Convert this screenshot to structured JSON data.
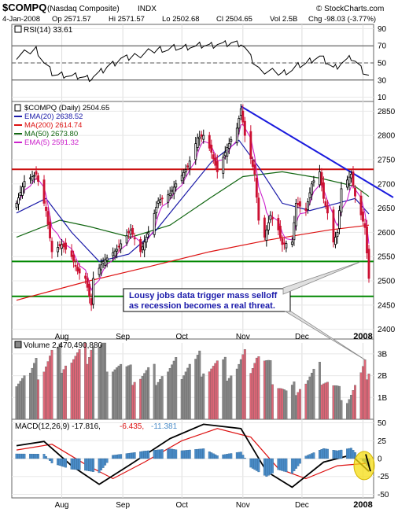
{
  "header": {
    "symbol": "$COMPQ",
    "name": "(Nasdaq Composite)",
    "exchange": "INDX",
    "brand": "© StockCharts.com",
    "stats": {
      "date": "4-Jan-2008",
      "op": "Op 2571.57",
      "hi": "Hi 2571.57",
      "lo": "Lo 2502.68",
      "cl": "Cl 2504.65",
      "vol": "Vol 2.5B",
      "chg": "Chg -98.03 (-3.77%)"
    }
  },
  "colors": {
    "ema20": "#1a1aa8",
    "ma200": "#dd1111",
    "ma50": "#116611",
    "ema5": "#cc22cc",
    "down_candle": "#cc1133",
    "up_candle": "#000000",
    "trendline": "#1b1bdd",
    "support": "#008800",
    "resistance": "#cc1111",
    "volume_down": "#dd6677",
    "volume_up": "#888888",
    "histogram": "#4a8cc8",
    "highlight": "#f5dc10"
  },
  "rsi": {
    "label": "RSI(14) 33.61",
    "ticks": [
      "90",
      "70",
      "50",
      "30",
      "10"
    ]
  },
  "price": {
    "legend": [
      {
        "label": "$COMPQ (Daily) 2504.65",
        "key": "price"
      },
      {
        "label": "EMA(20) 2638.52",
        "key": "ema20"
      },
      {
        "label": "MA(200) 2614.74",
        "key": "ma200"
      },
      {
        "label": "MA(50) 2673.80",
        "key": "ma50"
      },
      {
        "label": "EMA(5) 2591.32",
        "key": "ema5"
      }
    ],
    "ticks": [
      "2850",
      "2800",
      "2750",
      "2700",
      "2650",
      "2600",
      "2550",
      "2500",
      "2450",
      "2400"
    ],
    "annotation_line1": "Lousy jobs data trigger mass selloff",
    "annotation_line2": "as recession becomes a real threat."
  },
  "volume": {
    "label": "Volume 2,470,490,880",
    "ticks": [
      "3B",
      "2B",
      "1B"
    ]
  },
  "macd": {
    "label_main": "MACD(12,26,9) -17.816,",
    "label_signal": "-6.435,",
    "label_hist": "-11.381",
    "ticks": [
      "50",
      "25",
      "0",
      "-25",
      "-50"
    ]
  },
  "x_axis": {
    "months": [
      "Aug",
      "Sep",
      "Oct",
      "Nov",
      "Dec",
      "2008"
    ]
  },
  "chart_data": {
    "type": "line",
    "x_range": [
      "2007-07-09",
      "2008-01-04"
    ],
    "price_ylim": [
      2380,
      2870
    ],
    "rsi_ylim": [
      5,
      95
    ],
    "volume_ylim": [
      0,
      3500000000
    ],
    "macd_ylim": [
      -55,
      55
    ],
    "horizontal_levels": {
      "resistance": 2730,
      "support_upper": 2540,
      "support_lower": 2468
    },
    "trendline": [
      {
        "date": "2007-10-31",
        "value": 2860
      },
      {
        "date": "2008-01-04",
        "value": 2685
      }
    ],
    "price_series": [
      {
        "date": "2007-07-09",
        "close": 2660
      },
      {
        "date": "2007-07-13",
        "close": 2705
      },
      {
        "date": "2007-07-19",
        "close": 2720
      },
      {
        "date": "2007-07-24",
        "close": 2645
      },
      {
        "date": "2007-07-27",
        "close": 2560
      },
      {
        "date": "2007-08-01",
        "close": 2575
      },
      {
        "date": "2007-08-06",
        "close": 2550
      },
      {
        "date": "2007-08-09",
        "close": 2520
      },
      {
        "date": "2007-08-13",
        "close": 2505
      },
      {
        "date": "2007-08-16",
        "close": 2450
      },
      {
        "date": "2007-08-17",
        "close": 2505
      },
      {
        "date": "2007-08-22",
        "close": 2540
      },
      {
        "date": "2007-08-29",
        "close": 2565
      },
      {
        "date": "2007-09-05",
        "close": 2605
      },
      {
        "date": "2007-09-10",
        "close": 2560
      },
      {
        "date": "2007-09-14",
        "close": 2600
      },
      {
        "date": "2007-09-19",
        "close": 2665
      },
      {
        "date": "2007-09-25",
        "close": 2680
      },
      {
        "date": "2007-09-28",
        "close": 2700
      },
      {
        "date": "2007-10-04",
        "close": 2735
      },
      {
        "date": "2007-10-09",
        "close": 2795
      },
      {
        "date": "2007-10-12",
        "close": 2800
      },
      {
        "date": "2007-10-16",
        "close": 2765
      },
      {
        "date": "2007-10-19",
        "close": 2725
      },
      {
        "date": "2007-10-24",
        "close": 2775
      },
      {
        "date": "2007-10-29",
        "close": 2815
      },
      {
        "date": "2007-10-31",
        "close": 2855
      },
      {
        "date": "2007-11-02",
        "close": 2800
      },
      {
        "date": "2007-11-07",
        "close": 2720
      },
      {
        "date": "2007-11-09",
        "close": 2625
      },
      {
        "date": "2007-11-12",
        "close": 2590
      },
      {
        "date": "2007-11-15",
        "close": 2635
      },
      {
        "date": "2007-11-19",
        "close": 2605
      },
      {
        "date": "2007-11-21",
        "close": 2575
      },
      {
        "date": "2007-11-26",
        "close": 2580
      },
      {
        "date": "2007-11-28",
        "close": 2660
      },
      {
        "date": "2007-12-03",
        "close": 2645
      },
      {
        "date": "2007-12-06",
        "close": 2700
      },
      {
        "date": "2007-12-10",
        "close": 2725
      },
      {
        "date": "2007-12-12",
        "close": 2670
      },
      {
        "date": "2007-12-14",
        "close": 2640
      },
      {
        "date": "2007-12-17",
        "close": 2580
      },
      {
        "date": "2007-12-19",
        "close": 2600
      },
      {
        "date": "2007-12-21",
        "close": 2690
      },
      {
        "date": "2007-12-26",
        "close": 2720
      },
      {
        "date": "2007-12-28",
        "close": 2675
      },
      {
        "date": "2008-01-02",
        "close": 2610
      },
      {
        "date": "2008-01-04",
        "close": 2505
      }
    ],
    "ema20_series": [
      {
        "date": "2007-07-09",
        "value": 2640
      },
      {
        "date": "2007-07-24",
        "value": 2670
      },
      {
        "date": "2007-08-06",
        "value": 2600
      },
      {
        "date": "2007-08-20",
        "value": 2540
      },
      {
        "date": "2007-09-04",
        "value": 2555
      },
      {
        "date": "2007-09-18",
        "value": 2605
      },
      {
        "date": "2007-10-02",
        "value": 2675
      },
      {
        "date": "2007-10-16",
        "value": 2745
      },
      {
        "date": "2007-10-30",
        "value": 2790
      },
      {
        "date": "2007-11-09",
        "value": 2735
      },
      {
        "date": "2007-11-21",
        "value": 2660
      },
      {
        "date": "2007-12-05",
        "value": 2645
      },
      {
        "date": "2007-12-19",
        "value": 2660
      },
      {
        "date": "2007-12-28",
        "value": 2670
      },
      {
        "date": "2008-01-04",
        "value": 2638
      }
    ],
    "ma50_series": [
      {
        "date": "2007-07-09",
        "value": 2590
      },
      {
        "date": "2007-07-31",
        "value": 2625
      },
      {
        "date": "2007-08-15",
        "value": 2612
      },
      {
        "date": "2007-09-05",
        "value": 2590
      },
      {
        "date": "2007-09-25",
        "value": 2615
      },
      {
        "date": "2007-10-15",
        "value": 2670
      },
      {
        "date": "2007-11-01",
        "value": 2715
      },
      {
        "date": "2007-11-21",
        "value": 2725
      },
      {
        "date": "2007-12-10",
        "value": 2712
      },
      {
        "date": "2007-12-28",
        "value": 2695
      },
      {
        "date": "2008-01-04",
        "value": 2674
      }
    ],
    "ma200_series": [
      {
        "date": "2007-07-09",
        "value": 2460
      },
      {
        "date": "2007-08-15",
        "value": 2500
      },
      {
        "date": "2007-09-15",
        "value": 2530
      },
      {
        "date": "2007-10-15",
        "value": 2560
      },
      {
        "date": "2007-11-15",
        "value": 2585
      },
      {
        "date": "2007-12-15",
        "value": 2605
      },
      {
        "date": "2008-01-04",
        "value": 2615
      }
    ],
    "rsi_series": [
      {
        "date": "2007-07-09",
        "value": 58
      },
      {
        "date": "2007-07-19",
        "value": 66
      },
      {
        "date": "2007-07-27",
        "value": 38
      },
      {
        "date": "2007-08-16",
        "value": 32
      },
      {
        "date": "2007-08-29",
        "value": 52
      },
      {
        "date": "2007-09-19",
        "value": 66
      },
      {
        "date": "2007-10-09",
        "value": 70
      },
      {
        "date": "2007-10-31",
        "value": 73
      },
      {
        "date": "2007-11-09",
        "value": 42
      },
      {
        "date": "2007-11-21",
        "value": 38
      },
      {
        "date": "2007-12-10",
        "value": 58
      },
      {
        "date": "2007-12-17",
        "value": 44
      },
      {
        "date": "2007-12-26",
        "value": 56
      },
      {
        "date": "2008-01-04",
        "value": 33.61
      }
    ],
    "volume_series": [
      {
        "date": "2007-07-16",
        "value": 2000000000
      },
      {
        "date": "2007-07-27",
        "value": 2900000000
      },
      {
        "date": "2007-08-10",
        "value": 2700000000
      },
      {
        "date": "2007-08-16",
        "value": 3500000000
      },
      {
        "date": "2007-09-05",
        "value": 2000000000
      },
      {
        "date": "2007-09-21",
        "value": 2100000000
      },
      {
        "date": "2007-10-11",
        "value": 2600000000
      },
      {
        "date": "2007-10-26",
        "value": 2200000000
      },
      {
        "date": "2007-11-08",
        "value": 3000000000
      },
      {
        "date": "2007-11-23",
        "value": 1200000000
      },
      {
        "date": "2007-12-10",
        "value": 2100000000
      },
      {
        "date": "2007-12-24",
        "value": 900000000
      },
      {
        "date": "2008-01-04",
        "value": 2470490880
      }
    ],
    "macd_series": [
      {
        "date": "2007-07-09",
        "value": 18
      },
      {
        "date": "2007-07-23",
        "value": 24
      },
      {
        "date": "2007-08-06",
        "value": -10
      },
      {
        "date": "2007-08-20",
        "value": -36
      },
      {
        "date": "2007-09-05",
        "value": -8
      },
      {
        "date": "2007-09-25",
        "value": 28
      },
      {
        "date": "2007-10-12",
        "value": 48
      },
      {
        "date": "2007-10-31",
        "value": 42
      },
      {
        "date": "2007-11-13",
        "value": -18
      },
      {
        "date": "2007-11-26",
        "value": -40
      },
      {
        "date": "2007-12-12",
        "value": -5
      },
      {
        "date": "2007-12-26",
        "value": 5
      },
      {
        "date": "2008-01-04",
        "value": -17.816
      }
    ],
    "signal_series": [
      {
        "date": "2007-07-09",
        "value": 12
      },
      {
        "date": "2007-07-27",
        "value": 20
      },
      {
        "date": "2007-08-13",
        "value": -8
      },
      {
        "date": "2007-08-27",
        "value": -28
      },
      {
        "date": "2007-09-12",
        "value": -5
      },
      {
        "date": "2007-10-01",
        "value": 25
      },
      {
        "date": "2007-10-19",
        "value": 42
      },
      {
        "date": "2007-11-05",
        "value": 30
      },
      {
        "date": "2007-11-19",
        "value": -14
      },
      {
        "date": "2007-12-03",
        "value": -28
      },
      {
        "date": "2007-12-19",
        "value": -10
      },
      {
        "date": "2008-01-04",
        "value": -6.435
      }
    ]
  }
}
